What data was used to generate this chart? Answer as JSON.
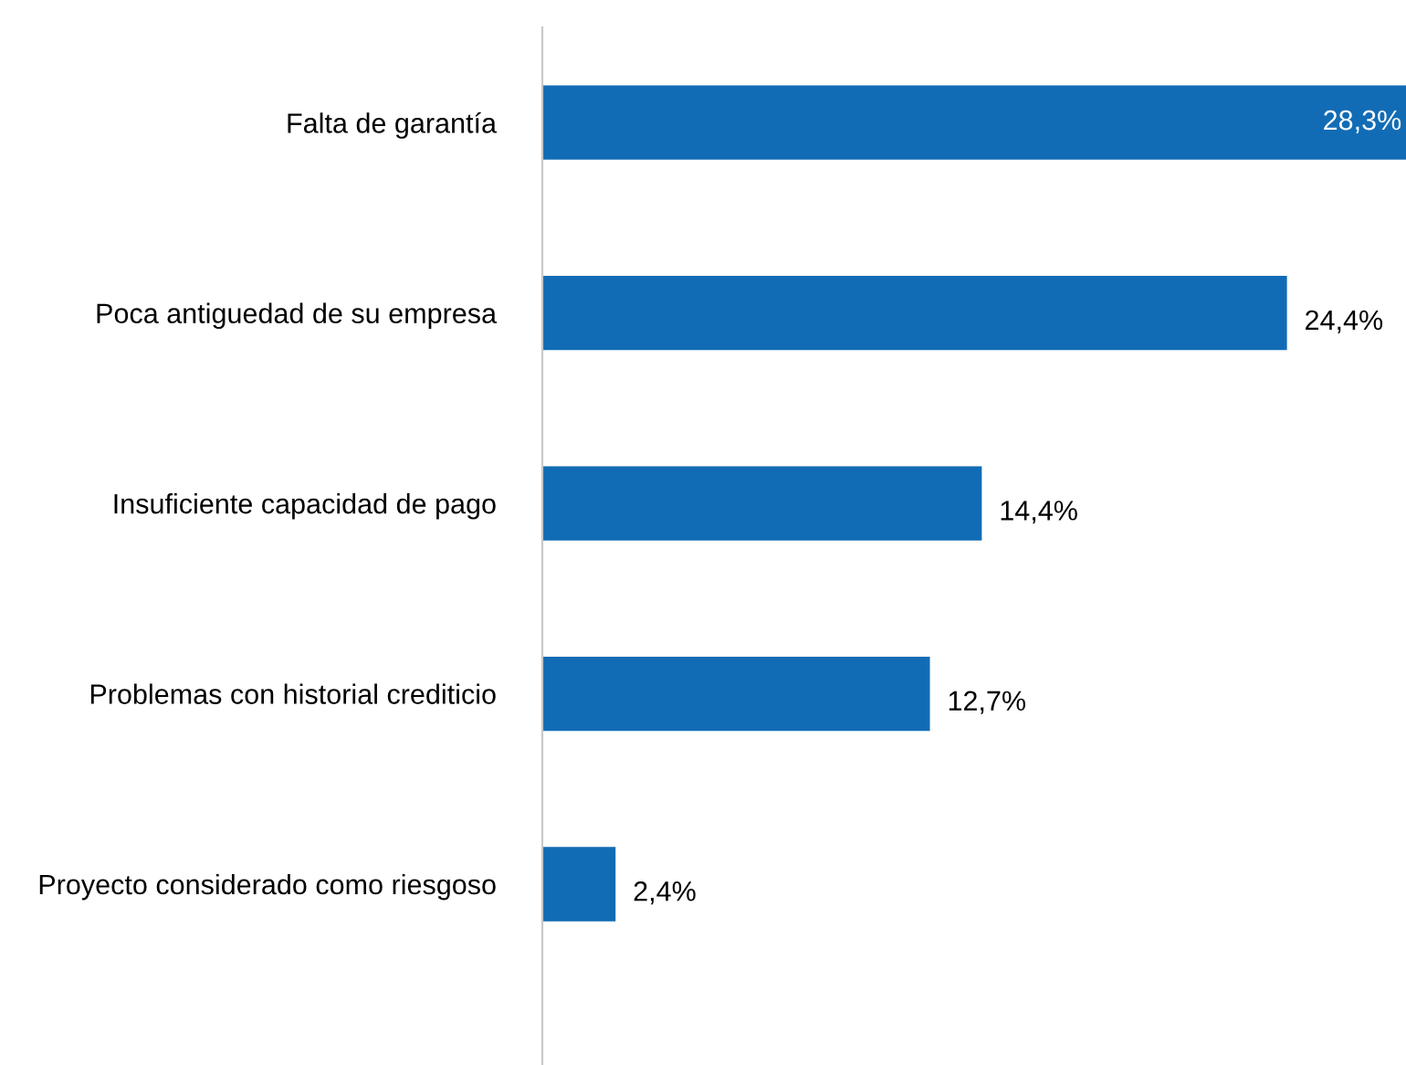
{
  "chart_data": {
    "type": "bar",
    "orientation": "horizontal",
    "categories": [
      "Falta de garantía",
      "Poca antiguedad de su empresa",
      "Insuficiente capacidad de pago",
      "Problemas con historial crediticio",
      "Proyecto considerado como riesgoso"
    ],
    "values": [
      28.3,
      24.4,
      14.4,
      12.7,
      2.4
    ],
    "value_labels": [
      "28,3%",
      "24,4%",
      "14,4%",
      "12,7%",
      "2,4%"
    ],
    "color": "#126cb5",
    "grid": false,
    "tick_labels": "y"
  }
}
